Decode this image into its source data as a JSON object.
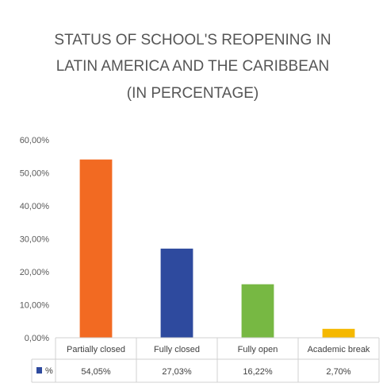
{
  "chart_data": {
    "type": "bar",
    "title_lines": [
      "STATUS OF SCHOOL'S REOPENING IN",
      "LATIN AMERICA AND THE CARIBBEAN",
      "(IN PERCENTAGE)"
    ],
    "categories": [
      "Partially closed",
      "Fully closed",
      "Fully open",
      "Academic break"
    ],
    "series": [
      {
        "name": "%",
        "values": [
          54.05,
          27.03,
          16.22,
          2.7
        ],
        "value_labels": [
          "54,05%",
          "27,03%",
          "16,22%",
          "2,70%"
        ]
      }
    ],
    "bar_colors": [
      "#f26a22",
      "#2e4a9e",
      "#77b843",
      "#f5b800"
    ],
    "legend_color": "#2e4a9e",
    "ylim": [
      0,
      60
    ],
    "yticks": [
      0,
      10,
      20,
      30,
      40,
      50,
      60
    ],
    "ytick_labels": [
      "0,00%",
      "10,00%",
      "20,00%",
      "30,00%",
      "40,00%",
      "50,00%",
      "60,00%"
    ],
    "grid": false,
    "legend_placement": "data-table"
  }
}
